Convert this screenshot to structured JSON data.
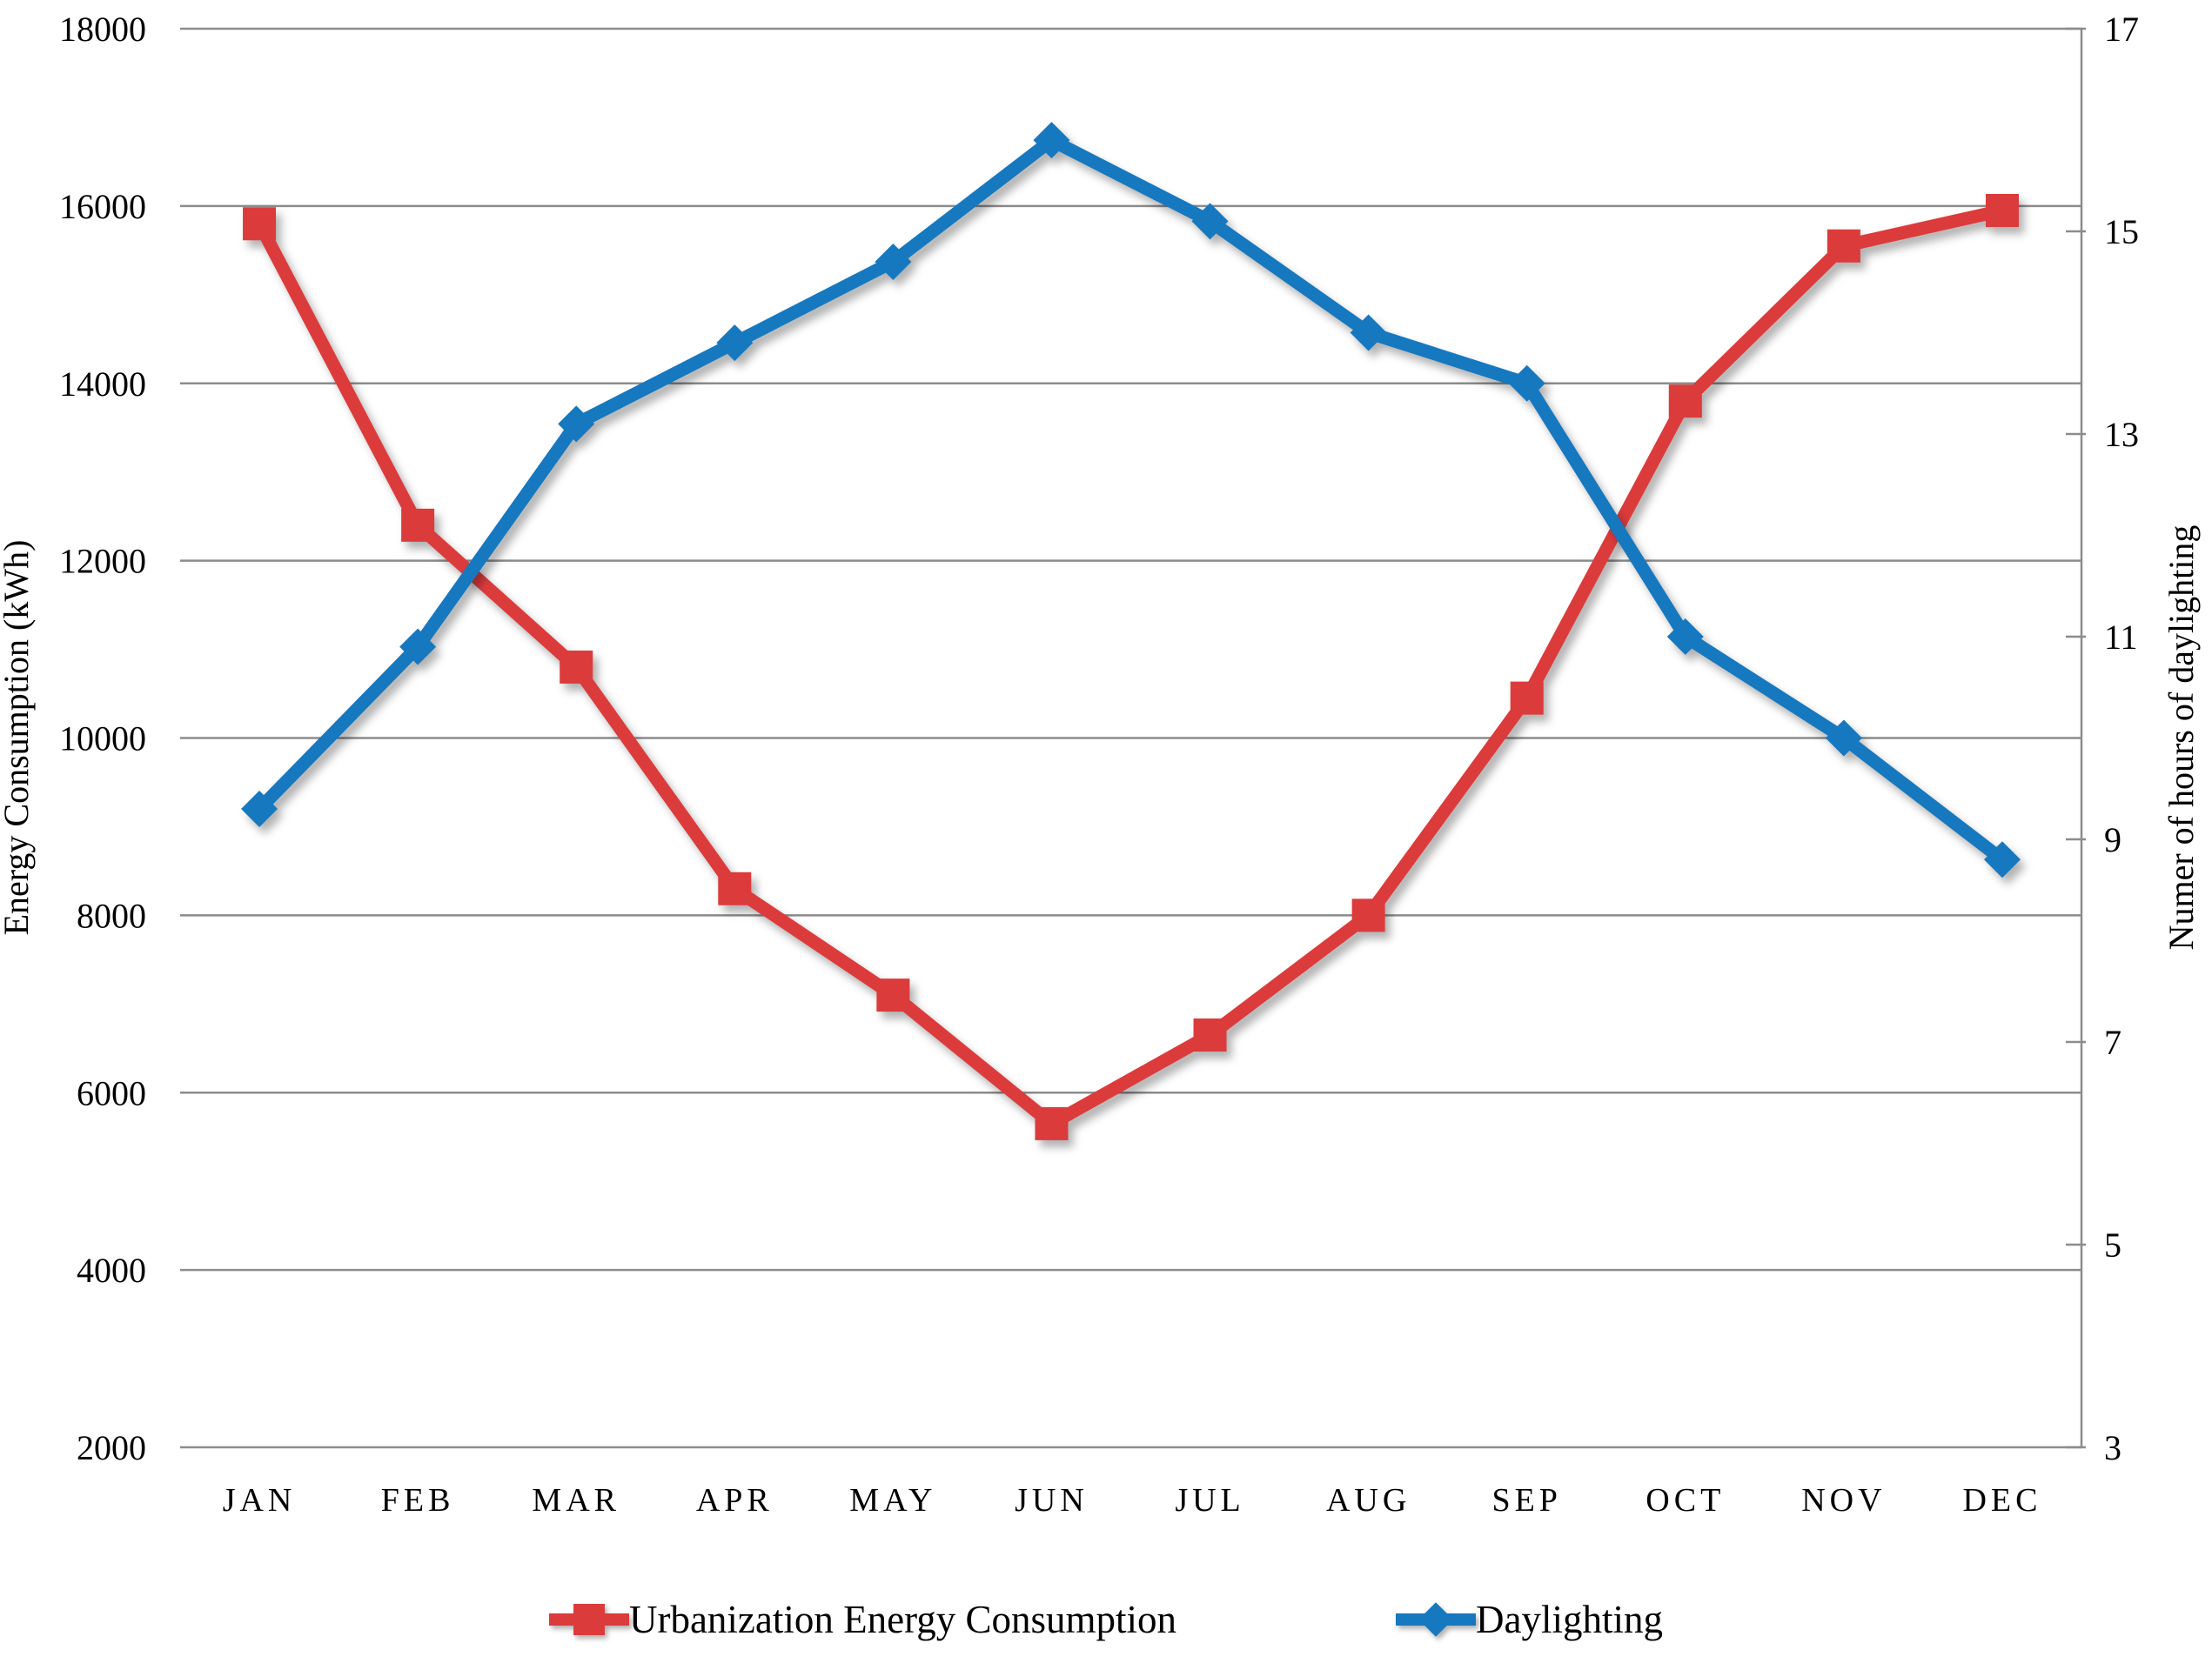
{
  "figure": {
    "background": "#ffffff",
    "text_color": "#000000"
  },
  "chart_data": {
    "type": "line",
    "categories": [
      "JAN",
      "FEB",
      "MAR",
      "APR",
      "MAY",
      "JUN",
      "JUL",
      "AUG",
      "SEP",
      "OCT",
      "NOV",
      "DEC"
    ],
    "series": [
      {
        "name": "Urbanization Energy Consumption",
        "axis": "left",
        "color": "#dc3b3c",
        "marker": "square",
        "values": [
          15800,
          12400,
          10800,
          8300,
          7100,
          5650,
          6650,
          8000,
          10450,
          13800,
          15550,
          15950
        ]
      },
      {
        "name": "Daylighting",
        "axis": "right",
        "color": "#1678bf",
        "marker": "diamond",
        "values": [
          9.3,
          10.9,
          13.1,
          13.9,
          14.7,
          15.9,
          15.1,
          14,
          13.5,
          11,
          10,
          8.8
        ]
      }
    ],
    "left_axis": {
      "title": "Energy Consumption (kWh)",
      "min": 2000,
      "max": 18000,
      "step": 2000,
      "tick_labels": [
        "18000",
        "16000",
        "14000",
        "12000",
        "10000",
        "8000",
        "6000",
        "4000",
        "2000"
      ]
    },
    "right_axis": {
      "title": "Numer of hours of daylighting",
      "min": 3,
      "max": 17,
      "step": 2,
      "tick_labels": [
        "17",
        "15",
        "13",
        "11",
        "9",
        "7",
        "5",
        "3"
      ]
    },
    "grid": "horizontal",
    "gridline_color": "#8c8c8c",
    "legend_position": "bottom"
  }
}
